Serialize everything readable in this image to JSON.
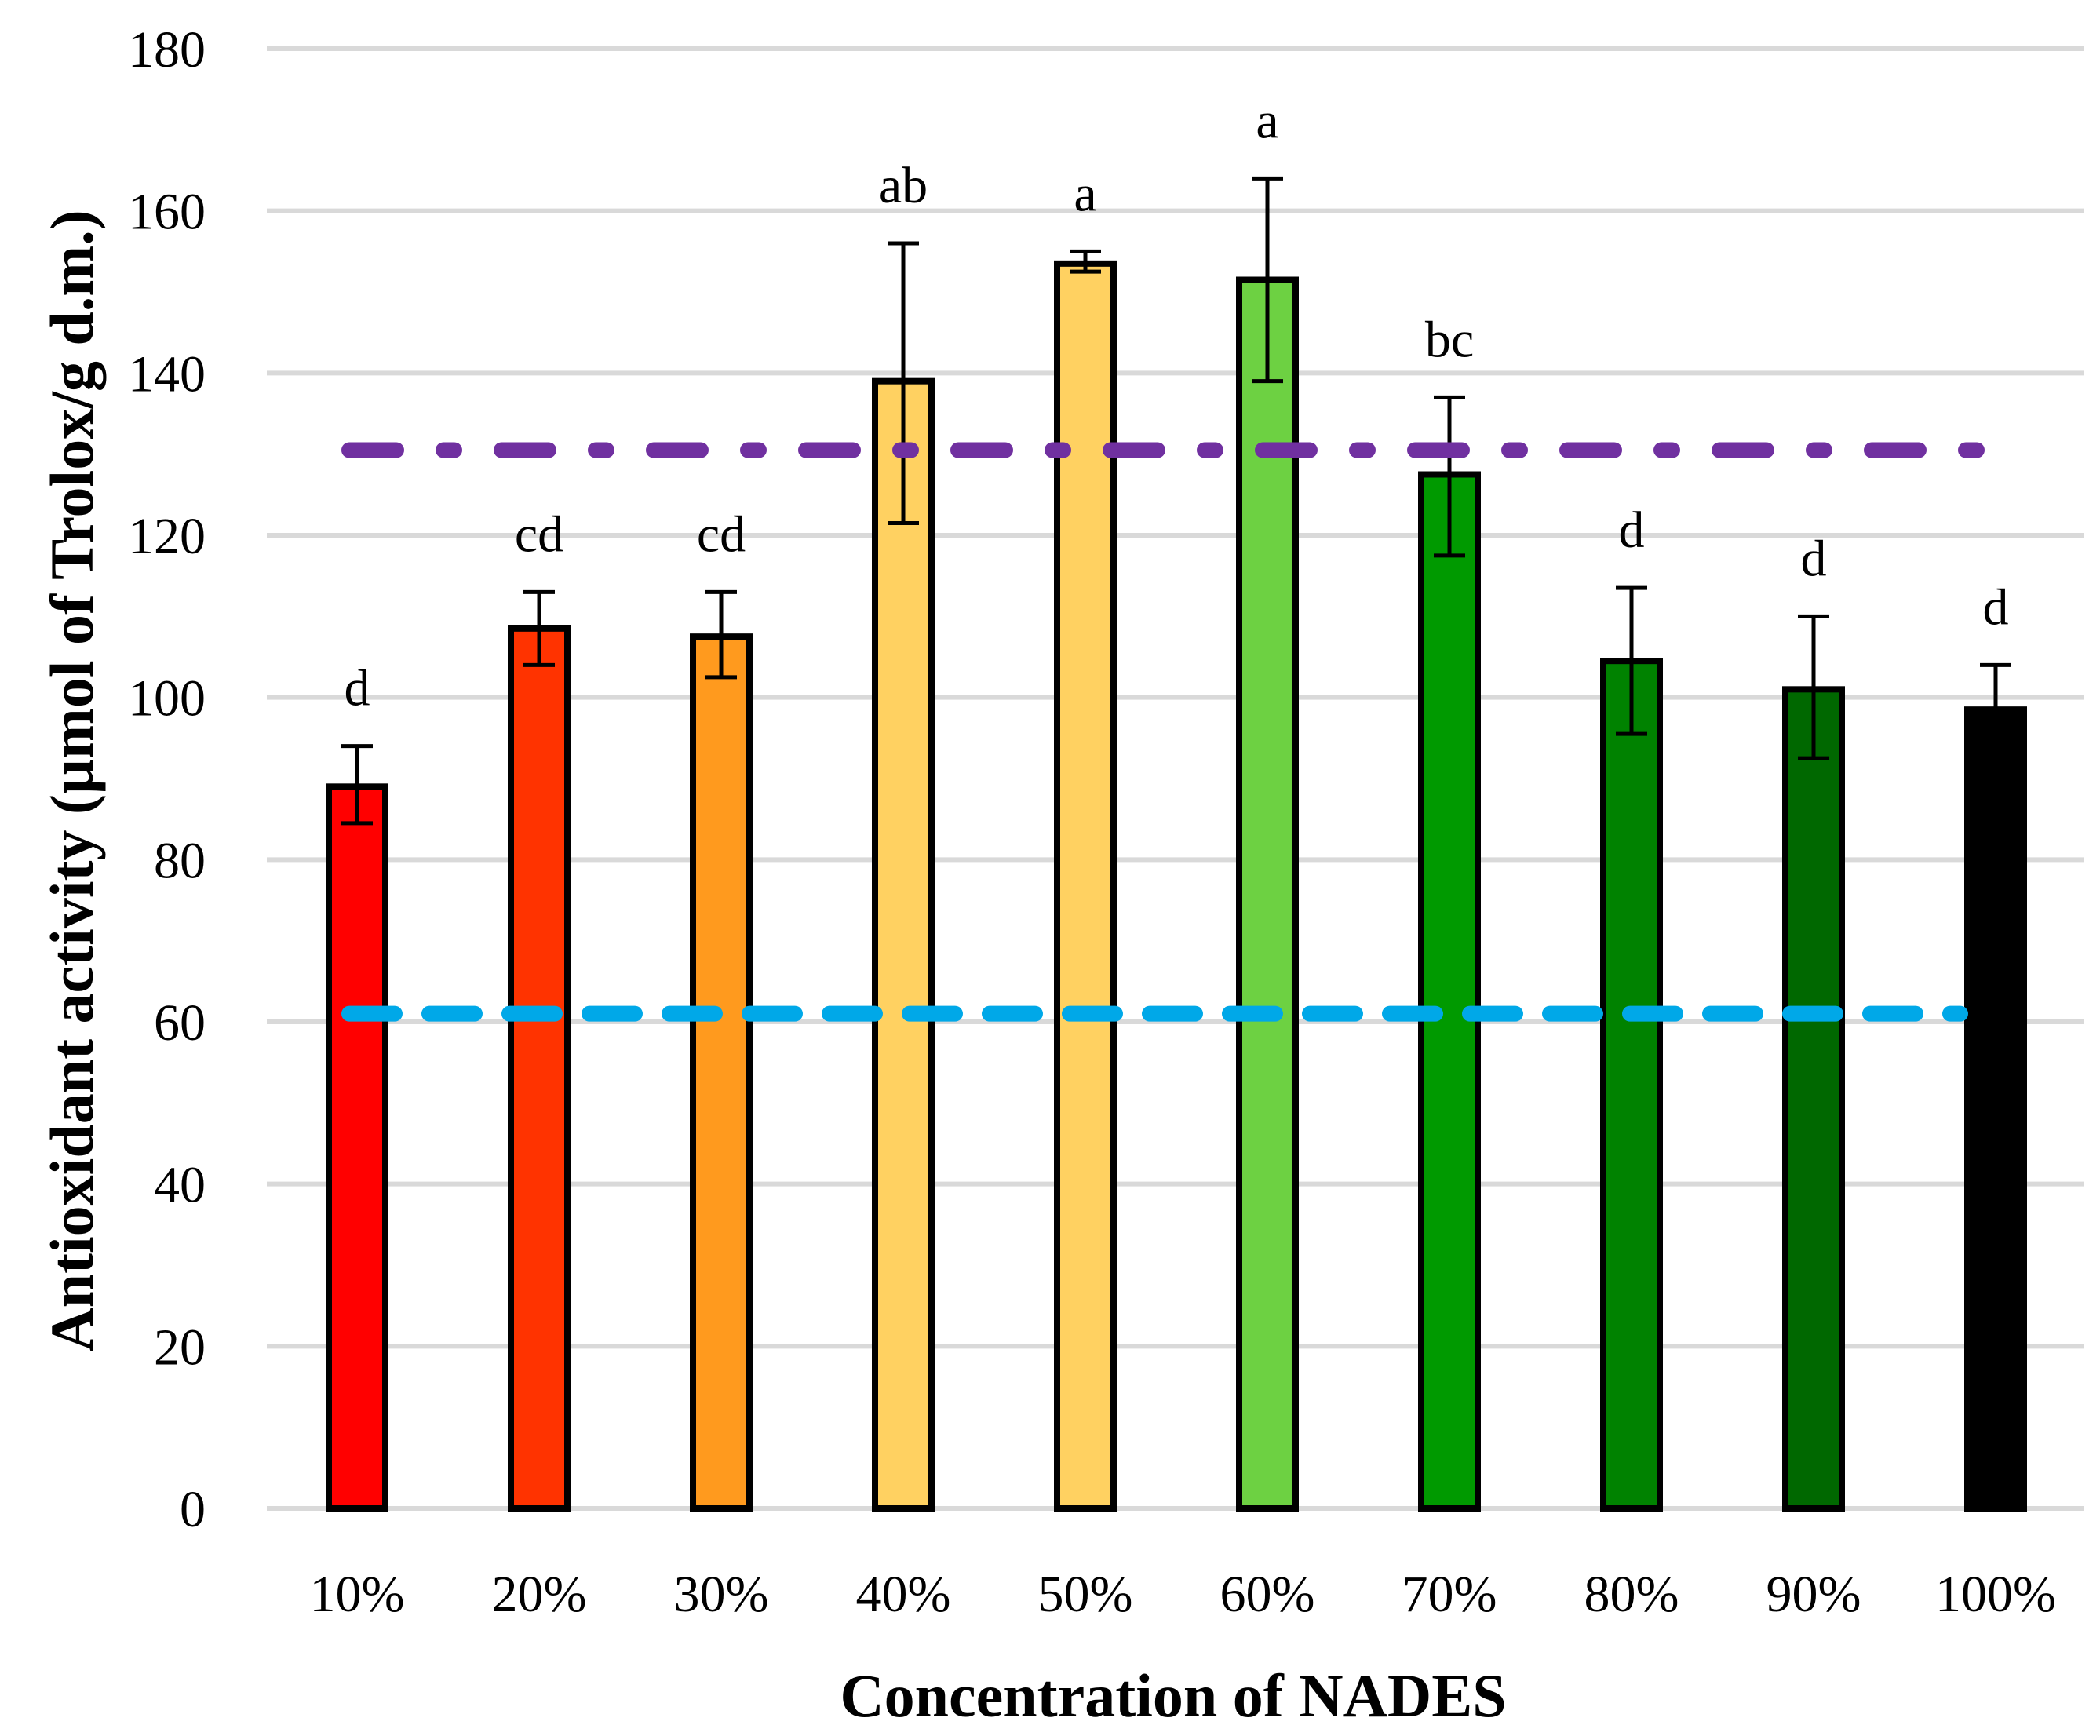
{
  "chart_data": {
    "type": "bar",
    "title": "",
    "xlabel": "Concentration of NADES",
    "ylabel": "Antioxidant activity (µmol of Trolox/g d.m.)",
    "ylim": [
      0,
      180
    ],
    "yticks": [
      0,
      20,
      40,
      60,
      80,
      100,
      120,
      140,
      160,
      180
    ],
    "ytick_labels": [
      "0",
      "20",
      "40",
      "60",
      "80",
      "100",
      "120",
      "140",
      "160",
      "180"
    ],
    "grid": true,
    "legend": "none",
    "categories": [
      "10%",
      "20%",
      "30%",
      "40%",
      "50%",
      "60%",
      "70%",
      "80%",
      "90%",
      "100%"
    ],
    "values": [
      89,
      108.5,
      107.5,
      139,
      153.5,
      151.5,
      127.5,
      104.5,
      101,
      98.5
    ],
    "error_upper": [
      94,
      113,
      113,
      156,
      155,
      164,
      137,
      113.5,
      110,
      104
    ],
    "error_lower": [
      84.5,
      104,
      102.5,
      121.5,
      152.5,
      139,
      117.5,
      95.5,
      92.5,
      98.5
    ],
    "significance_labels": [
      "d",
      "cd",
      "cd",
      "ab",
      "a",
      "a",
      "bc",
      "d",
      "d",
      "d"
    ],
    "bar_colors": [
      "#ff0000",
      "#ff3300",
      "#ff9a1e",
      "#ffd161",
      "#ffd161",
      "#6dd142",
      "#009a00",
      "#008200",
      "#006800",
      "#000000"
    ],
    "reference_lines": [
      {
        "value": 130.5,
        "style": "dash-dot",
        "color": "#7030a0"
      },
      {
        "value": 61,
        "style": "dashed",
        "color": "#00a8e8"
      }
    ]
  }
}
